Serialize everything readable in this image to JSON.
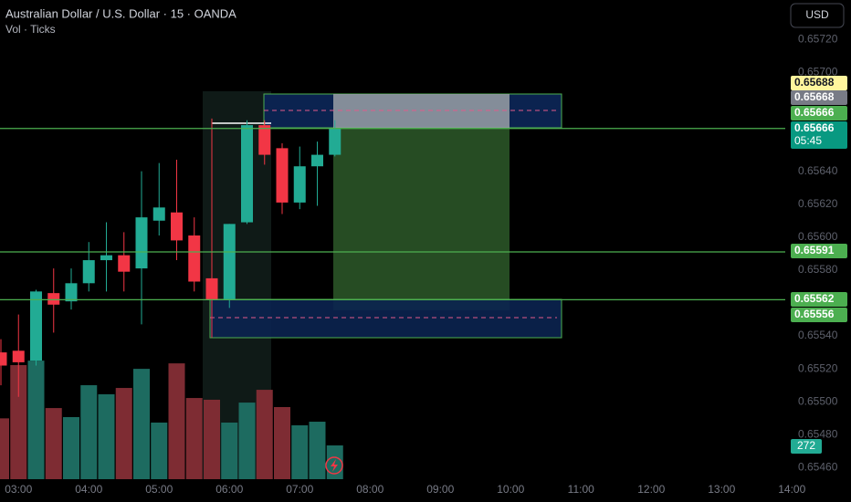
{
  "chart_data": {
    "type": "candlestick",
    "title": "Australian Dollar / U.S. Dollar · 15 · OANDA",
    "subtitle": "Vol · Ticks",
    "currency": "USD",
    "up_color": "#22ab94",
    "down_color": "#f23645",
    "volume_up_color": "#1d6b60",
    "volume_down_color": "#7e2c33",
    "open": [
      0.6553,
      0.65531,
      0.65525,
      0.65566,
      0.65561,
      0.65572,
      0.65586,
      0.65589,
      0.65581,
      0.6561,
      0.65615,
      0.65601,
      0.65575,
      0.65562,
      0.65609,
      0.65668,
      0.65654,
      0.65621,
      0.65643,
      0.6565
    ],
    "high": [
      0.65538,
      0.65553,
      0.65568,
      0.65581,
      0.65581,
      0.65597,
      0.65609,
      0.65603,
      0.6564,
      0.65645,
      0.65647,
      0.65612,
      0.65672,
      0.65608,
      0.65671,
      0.65671,
      0.65657,
      0.65655,
      0.65658,
      0.65671
    ],
    "low": [
      0.6551,
      0.65503,
      0.65522,
      0.65542,
      0.65556,
      0.65567,
      0.65567,
      0.65567,
      0.65547,
      0.65601,
      0.65586,
      0.65567,
      0.65539,
      0.65557,
      0.65608,
      0.65644,
      0.65614,
      0.65617,
      0.65619,
      0.65649
    ],
    "close": [
      0.65522,
      0.65524,
      0.65567,
      0.65559,
      0.65572,
      0.65586,
      0.65589,
      0.65579,
      0.65612,
      0.65618,
      0.65598,
      0.65573,
      0.65562,
      0.65608,
      0.65668,
      0.6565,
      0.65621,
      0.65643,
      0.6565,
      0.65666
    ],
    "volume": [
      490,
      919,
      955,
      573,
      500,
      757,
      684,
      735,
      889,
      456,
      933,
      654,
      640,
      456,
      617,
      720,
      581,
      434,
      463,
      272
    ],
    "volume_lim": [
      0,
      1500
    ],
    "ylim": [
      0.65453,
      0.65744
    ],
    "yticks": [
      {
        "value": 0.6572,
        "label": "0.65720"
      },
      {
        "value": 0.657,
        "label": "0.65700"
      },
      {
        "value": 0.6564,
        "label": "0.65640"
      },
      {
        "value": 0.6562,
        "label": "0.65620"
      },
      {
        "value": 0.656,
        "label": "0.65600"
      },
      {
        "value": 0.6558,
        "label": "0.65580"
      },
      {
        "value": 0.6554,
        "label": "0.65540"
      },
      {
        "value": 0.6552,
        "label": "0.65520"
      },
      {
        "value": 0.655,
        "label": "0.65500"
      },
      {
        "value": 0.6548,
        "label": "0.65480"
      },
      {
        "value": 0.6546,
        "label": "0.65460"
      }
    ],
    "xticks": [
      "03:00",
      "04:00",
      "05:00",
      "06:00",
      "07:00",
      "08:00",
      "09:00",
      "10:00",
      "11:00",
      "12:00",
      "13:00",
      "14:00"
    ],
    "price_labels": [
      {
        "value": 0.65688,
        "color": "#fff59d",
        "text_color": "#131722"
      },
      {
        "value": 0.65668,
        "color": "#787b86",
        "text_color": "#ffffff"
      },
      {
        "value": 0.65666,
        "color": "#4caf50",
        "text_color": "#ffffff",
        "line": true
      },
      {
        "value": 0.65666,
        "color": "#089981",
        "text_color": "#ffffff",
        "countdown": "05:45"
      },
      {
        "value": 0.65591,
        "color": "#4caf50",
        "text_color": "#ffffff",
        "line": true
      },
      {
        "value": 0.65562,
        "color": "#4caf50",
        "text_color": "#ffffff",
        "line": true
      },
      {
        "value": 0.65556,
        "color": "#4caf50",
        "text_color": "#ffffff"
      }
    ]
  }
}
